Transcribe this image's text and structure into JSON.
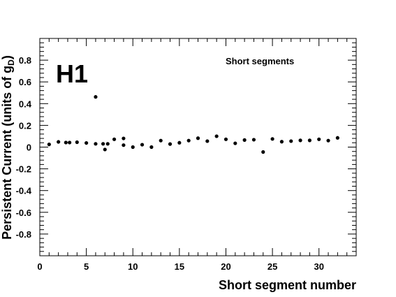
{
  "chart_data": {
    "type": "scatter",
    "title": "",
    "xlabel": "Short segment number",
    "ylabel_main": "Persistent Current (units of g",
    "ylabel_sub": "D",
    "ylabel_close": ")",
    "panel_label": "H1",
    "annotation": "Short segments",
    "xlim": [
      0,
      34
    ],
    "ylim": [
      -1.0,
      1.0
    ],
    "x_ticks": [
      0,
      5,
      10,
      15,
      20,
      25,
      30
    ],
    "y_ticks": [
      -0.8,
      -0.6,
      -0.4,
      -0.2,
      0,
      0.2,
      0.4,
      0.6,
      0.8
    ],
    "y_tick_labels": [
      "-0.8",
      "-0.6",
      "-0.4",
      "-0.2",
      "0",
      "0.2",
      "0.4",
      "0.6",
      "0.8"
    ],
    "grid": false,
    "points": [
      {
        "x": 1,
        "y": 0.025
      },
      {
        "x": 2,
        "y": 0.048
      },
      {
        "x": 2.8,
        "y": 0.042
      },
      {
        "x": 3.2,
        "y": 0.042
      },
      {
        "x": 4,
        "y": 0.045
      },
      {
        "x": 5,
        "y": 0.038
      },
      {
        "x": 6,
        "y": 0.462
      },
      {
        "x": 6,
        "y": 0.03
      },
      {
        "x": 6.8,
        "y": 0.03
      },
      {
        "x": 7,
        "y": -0.022
      },
      {
        "x": 7.3,
        "y": 0.03
      },
      {
        "x": 8,
        "y": 0.072
      },
      {
        "x": 9,
        "y": 0.08
      },
      {
        "x": 9,
        "y": 0.018
      },
      {
        "x": 10,
        "y": 0.0
      },
      {
        "x": 11,
        "y": 0.022
      },
      {
        "x": 12,
        "y": 0.0
      },
      {
        "x": 13,
        "y": 0.06
      },
      {
        "x": 14,
        "y": 0.028
      },
      {
        "x": 15,
        "y": 0.04
      },
      {
        "x": 16,
        "y": 0.06
      },
      {
        "x": 17,
        "y": 0.082
      },
      {
        "x": 18,
        "y": 0.055
      },
      {
        "x": 19,
        "y": 0.1
      },
      {
        "x": 20,
        "y": 0.072
      },
      {
        "x": 21,
        "y": 0.035
      },
      {
        "x": 22,
        "y": 0.065
      },
      {
        "x": 23,
        "y": 0.068
      },
      {
        "x": 24,
        "y": -0.045
      },
      {
        "x": 25,
        "y": 0.075
      },
      {
        "x": 26,
        "y": 0.05
      },
      {
        "x": 27,
        "y": 0.055
      },
      {
        "x": 28,
        "y": 0.062
      },
      {
        "x": 29,
        "y": 0.062
      },
      {
        "x": 30,
        "y": 0.072
      },
      {
        "x": 31,
        "y": 0.06
      },
      {
        "x": 32,
        "y": 0.085
      }
    ]
  }
}
